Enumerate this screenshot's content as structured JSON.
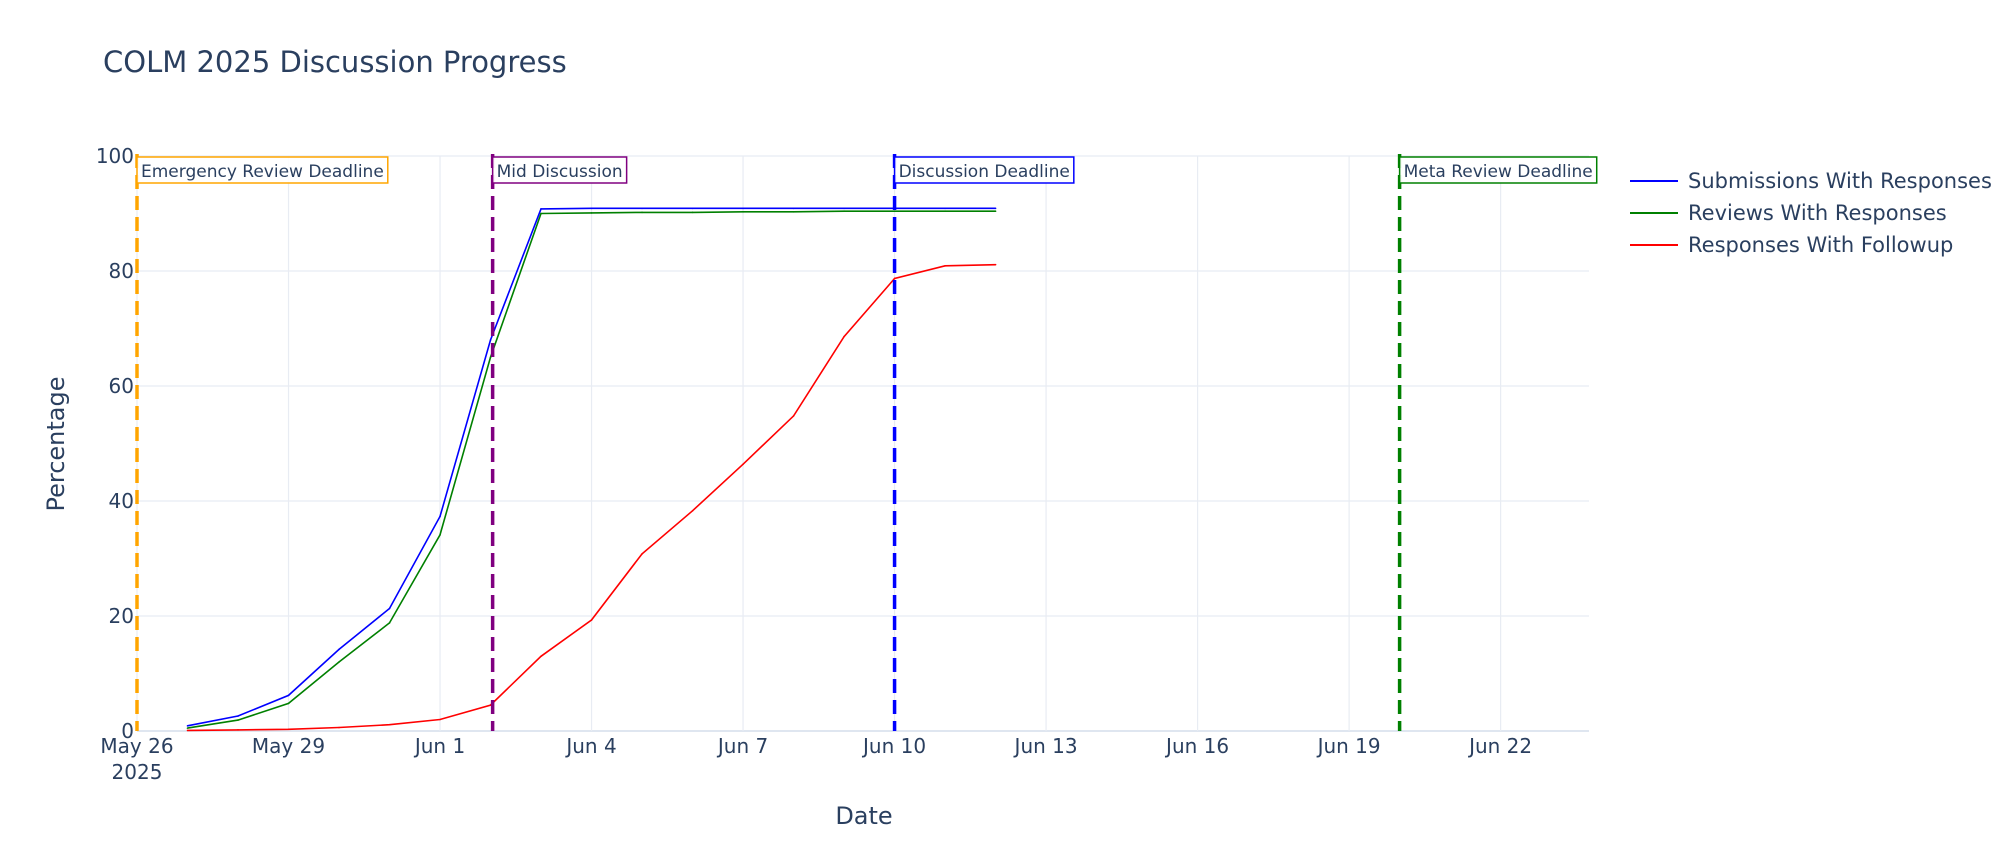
{
  "chart_data": {
    "type": "line",
    "title": "COLM 2025 Discussion Progress",
    "xlabel": "Date",
    "ylabel": "Percentage",
    "x_axis": "date",
    "xlim": [
      "2025-05-26",
      "2025-06-23T18:00"
    ],
    "ylim": [
      0,
      100
    ],
    "yticks": [
      0,
      20,
      40,
      60,
      80,
      100
    ],
    "xticks": [
      {
        "date": "2025-05-26",
        "label": "May 26",
        "sublabel": "2025"
      },
      {
        "date": "2025-05-29",
        "label": "May 29"
      },
      {
        "date": "2025-06-01",
        "label": "Jun 1"
      },
      {
        "date": "2025-06-04",
        "label": "Jun 4"
      },
      {
        "date": "2025-06-07",
        "label": "Jun 7"
      },
      {
        "date": "2025-06-10",
        "label": "Jun 10"
      },
      {
        "date": "2025-06-13",
        "label": "Jun 13"
      },
      {
        "date": "2025-06-16",
        "label": "Jun 16"
      },
      {
        "date": "2025-06-19",
        "label": "Jun 19"
      },
      {
        "date": "2025-06-22",
        "label": "Jun 22"
      }
    ],
    "grid": true,
    "legend_position": "right",
    "series": [
      {
        "name": "Submissions With Responses",
        "color": "#0000ff",
        "x": [
          "2025-05-27",
          "2025-05-28",
          "2025-05-29",
          "2025-05-30",
          "2025-05-31",
          "2025-06-01",
          "2025-06-02",
          "2025-06-03",
          "2025-06-04",
          "2025-06-05",
          "2025-06-06",
          "2025-06-07",
          "2025-06-08",
          "2025-06-09",
          "2025-06-10",
          "2025-06-11",
          "2025-06-12"
        ],
        "y": [
          0.9,
          2.6,
          6.2,
          14.2,
          21.3,
          37.3,
          68,
          90.8,
          90.9,
          90.9,
          90.9,
          90.9,
          90.9,
          90.9,
          90.9,
          90.9,
          90.9
        ]
      },
      {
        "name": "Reviews With Responses",
        "color": "#008000",
        "x": [
          "2025-05-27",
          "2025-05-28",
          "2025-05-29",
          "2025-05-30",
          "2025-05-31",
          "2025-06-01",
          "2025-06-02",
          "2025-06-03",
          "2025-06-04",
          "2025-06-05",
          "2025-06-06",
          "2025-06-07",
          "2025-06-08",
          "2025-06-09",
          "2025-06-10",
          "2025-06-11",
          "2025-06-12"
        ],
        "y": [
          0.5,
          1.9,
          4.8,
          12.0,
          18.8,
          34.1,
          65,
          90.0,
          90.1,
          90.2,
          90.2,
          90.3,
          90.3,
          90.4,
          90.4,
          90.4,
          90.4
        ]
      },
      {
        "name": "Responses With Followup",
        "color": "#ff0000",
        "x": [
          "2025-05-27",
          "2025-05-28",
          "2025-05-29",
          "2025-05-30",
          "2025-05-31",
          "2025-06-01",
          "2025-06-02",
          "2025-06-03",
          "2025-06-04",
          "2025-06-05",
          "2025-06-06",
          "2025-06-07",
          "2025-06-08",
          "2025-06-09",
          "2025-06-10",
          "2025-06-11",
          "2025-06-12"
        ],
        "y": [
          0.1,
          0.2,
          0.3,
          0.6,
          1.1,
          2.0,
          4.5,
          13.0,
          19.3,
          30.8,
          38.3,
          46.4,
          54.8,
          68.6,
          78.7,
          80.9,
          81.1
        ]
      }
    ],
    "annotations": [
      {
        "label": "Emergency Review Deadline",
        "date": "2025-05-26",
        "color": "#ffa500"
      },
      {
        "label": "Mid Discussion",
        "date": "2025-06-02T01:00",
        "color": "#800080"
      },
      {
        "label": "Discussion Deadline",
        "date": "2025-06-10",
        "color": "#0000ff"
      },
      {
        "label": "Meta Review Deadline",
        "date": "2025-06-20",
        "color": "#008000"
      }
    ]
  }
}
